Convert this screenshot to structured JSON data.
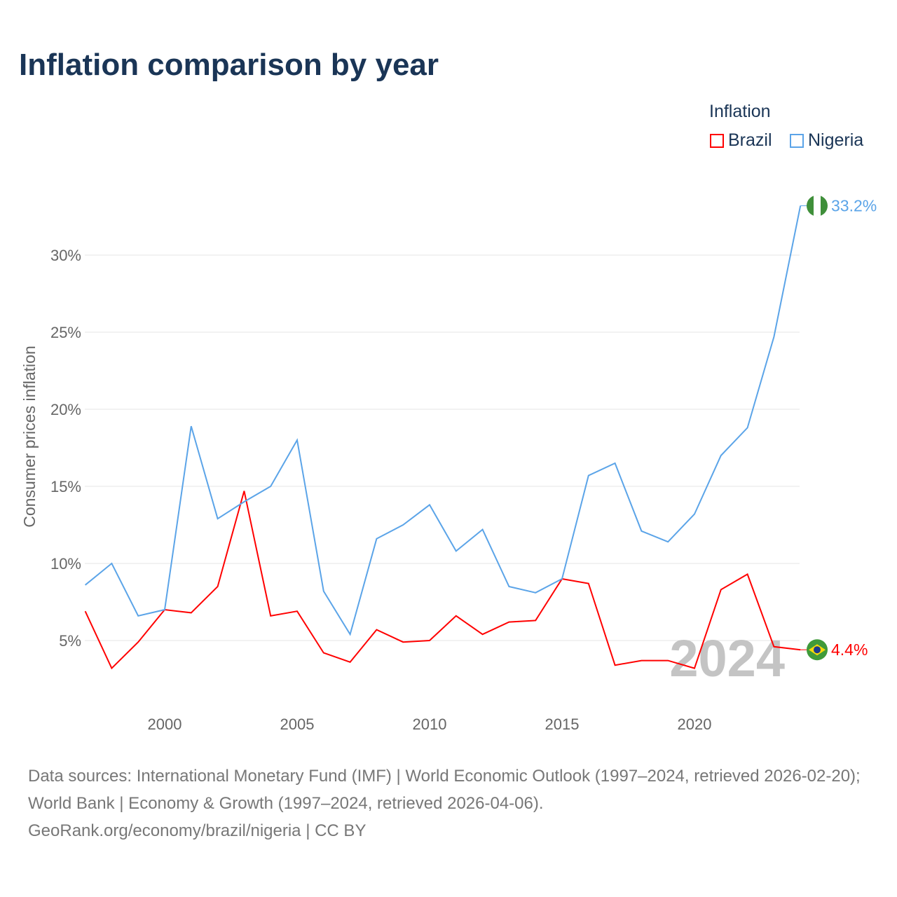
{
  "chart_data": {
    "type": "line",
    "title": "Inflation comparison by year",
    "ylabel": "Consumer prices inflation",
    "xlabel": "",
    "legend_title": "Inflation",
    "legend_position": "top-right",
    "x": [
      1997,
      1998,
      1999,
      2000,
      2001,
      2002,
      2003,
      2004,
      2005,
      2006,
      2007,
      2008,
      2009,
      2010,
      2011,
      2012,
      2013,
      2014,
      2015,
      2016,
      2017,
      2018,
      2019,
      2020,
      2021,
      2022,
      2023,
      2024
    ],
    "series": [
      {
        "name": "Brazil",
        "color": "#ff0000",
        "end_label": "4.4%",
        "values": [
          6.9,
          3.2,
          4.9,
          7.0,
          6.8,
          8.5,
          14.7,
          6.6,
          6.9,
          4.2,
          3.6,
          5.7,
          4.9,
          5.0,
          6.6,
          5.4,
          6.2,
          6.3,
          9.0,
          8.7,
          3.4,
          3.7,
          3.7,
          3.2,
          8.3,
          9.3,
          4.6,
          4.4
        ]
      },
      {
        "name": "Nigeria",
        "color": "#5ba4e8",
        "end_label": "33.2%",
        "values": [
          8.6,
          10.0,
          6.6,
          7.0,
          18.9,
          12.9,
          14.0,
          15.0,
          18.0,
          8.2,
          5.4,
          11.6,
          12.5,
          13.8,
          10.8,
          12.2,
          8.5,
          8.1,
          9.0,
          15.7,
          16.5,
          12.1,
          11.4,
          13.2,
          17.0,
          18.8,
          24.7,
          33.2
        ]
      }
    ],
    "y_ticks": [
      {
        "v": 5,
        "label": "5%"
      },
      {
        "v": 10,
        "label": "10%"
      },
      {
        "v": 15,
        "label": "15%"
      },
      {
        "v": 20,
        "label": "20%"
      },
      {
        "v": 25,
        "label": "25%"
      },
      {
        "v": 30,
        "label": "30%"
      }
    ],
    "x_ticks": [
      {
        "v": 2000,
        "label": "2000"
      },
      {
        "v": 2005,
        "label": "2005"
      },
      {
        "v": 2010,
        "label": "2010"
      },
      {
        "v": 2015,
        "label": "2015"
      },
      {
        "v": 2020,
        "label": "2020"
      }
    ],
    "ylim": [
      1,
      35
    ],
    "xlim": [
      1997,
      2024
    ],
    "grid": true,
    "year_watermark": "2024"
  },
  "source_text": "Data sources: International Monetary Fund (IMF) | World Economic Outlook (1997–2024, retrieved 2026-02-20); World Bank | Economy & Growth (1997–2024, retrieved 2026-04-06).",
  "source_link": "GeoRank.org/economy/brazil/nigeria | CC BY"
}
